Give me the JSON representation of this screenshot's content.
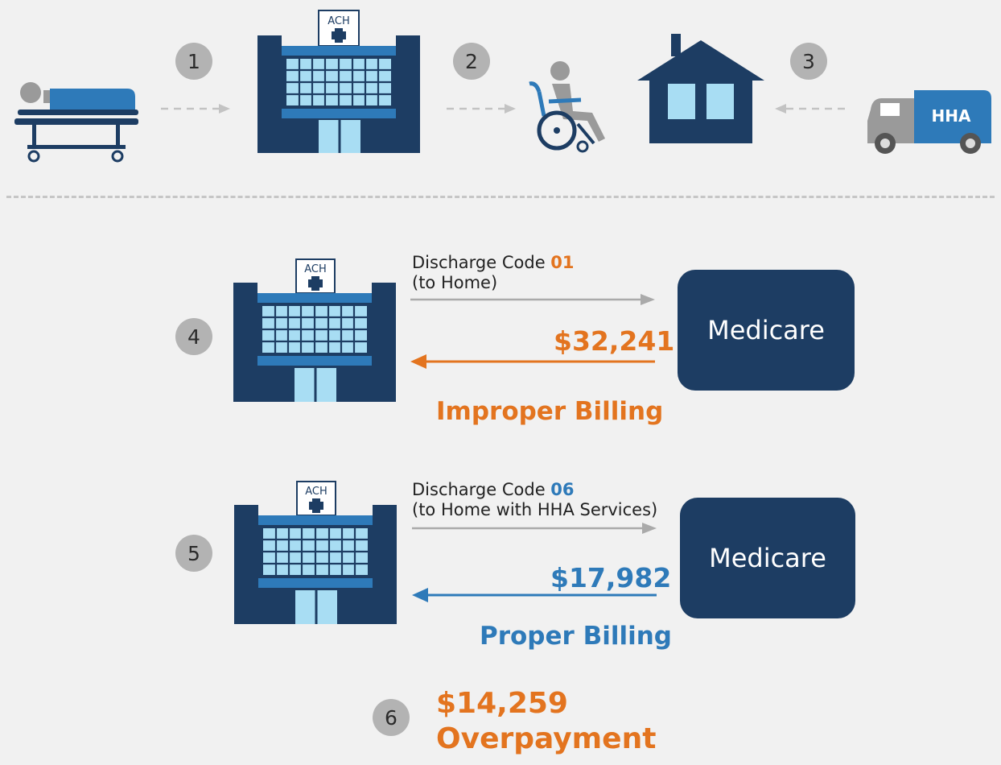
{
  "colors": {
    "navy": "#1d3d63",
    "mid_blue": "#2e7ab9",
    "light_blue": "#a8ddf3",
    "orange": "#e3741f",
    "gray": "#b3b3b3"
  },
  "steps": [
    "1",
    "2",
    "3",
    "4",
    "5",
    "6"
  ],
  "top_flow": {
    "building_sign": "ACH",
    "van_label": "HHA"
  },
  "row4": {
    "sign": "ACH",
    "code_prefix": "Discharge Code ",
    "code": "01",
    "code_desc": "(to Home)",
    "medicare": "Medicare",
    "amount": "$32,241",
    "billing_label": "Improper Billing"
  },
  "row5": {
    "sign": "ACH",
    "code_prefix": "Discharge Code ",
    "code": "06",
    "code_desc": "(to Home with HHA Services)",
    "medicare": "Medicare",
    "amount": "$17,982",
    "billing_label": "Proper Billing"
  },
  "result": {
    "amount": "$14,259",
    "label": "Overpayment"
  }
}
